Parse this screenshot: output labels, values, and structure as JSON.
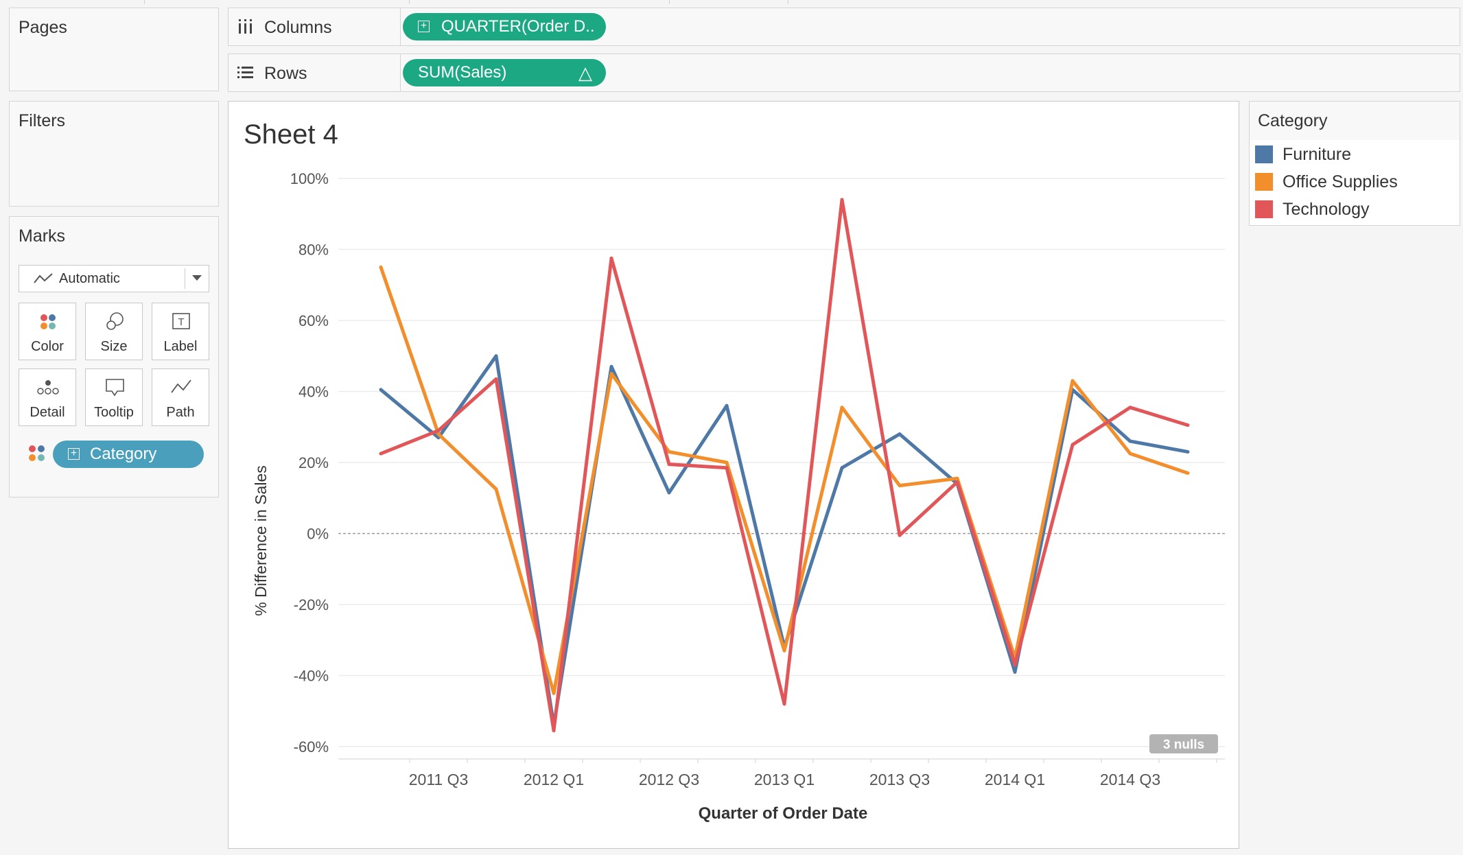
{
  "shelves": {
    "columns": {
      "label": "Columns",
      "pill": "QUARTER(Order D.."
    },
    "rows": {
      "label": "Rows",
      "pill": "SUM(Sales)",
      "pill_badge": "△"
    }
  },
  "panels": {
    "pages": "Pages",
    "filters": "Filters",
    "marks": "Marks"
  },
  "marks": {
    "type": "Automatic",
    "buttons": [
      "Color",
      "Size",
      "Label",
      "Detail",
      "Tooltip",
      "Path"
    ],
    "color_field": "Category"
  },
  "view": {
    "title": "Sheet 4",
    "nulls_badge": "3 nulls"
  },
  "legend": {
    "title": "Category",
    "items": [
      {
        "name": "Furniture",
        "color": "#4e79a7"
      },
      {
        "name": "Office Supplies",
        "color": "#f28e2b"
      },
      {
        "name": "Technology",
        "color": "#e15759"
      }
    ]
  },
  "chart_data": {
    "type": "line",
    "xlabel": "Quarter of Order Date",
    "ylabel": "% Difference in Sales",
    "ylim": [
      -60,
      100
    ],
    "y_ticks": [
      "100%",
      "80%",
      "60%",
      "40%",
      "20%",
      "0%",
      "-20%",
      "-40%",
      "-60%"
    ],
    "y_tick_values": [
      100,
      80,
      60,
      40,
      20,
      0,
      -20,
      -40,
      -60
    ],
    "x": [
      "2011 Q2",
      "2011 Q3",
      "2011 Q4",
      "2012 Q1",
      "2012 Q2",
      "2012 Q3",
      "2012 Q4",
      "2013 Q1",
      "2013 Q2",
      "2013 Q3",
      "2013 Q4",
      "2014 Q1",
      "2014 Q2",
      "2014 Q3",
      "2014 Q4"
    ],
    "x_tick_labels": [
      "2011 Q3",
      "2012 Q1",
      "2012 Q3",
      "2013 Q1",
      "2013 Q3",
      "2014 Q1",
      "2014 Q3"
    ],
    "series": [
      {
        "name": "Furniture",
        "color": "#4e79a7",
        "values": [
          40.5,
          27,
          50,
          -54,
          47,
          11.5,
          36,
          -32,
          18.5,
          28,
          14,
          -39,
          40.5,
          26,
          23
        ]
      },
      {
        "name": "Office Supplies",
        "color": "#f28e2b",
        "values": [
          75,
          28,
          12.5,
          -45,
          45,
          23,
          20,
          -33,
          35.5,
          13.5,
          15.5,
          -35,
          43,
          22.5,
          17
        ]
      },
      {
        "name": "Technology",
        "color": "#e15759",
        "values": [
          22.5,
          29,
          43.5,
          -55.5,
          77.5,
          19.5,
          18.5,
          -48,
          94,
          -0.5,
          14.5,
          -37,
          25,
          35.5,
          30.5
        ]
      }
    ],
    "legend_position": "right",
    "grid": true
  }
}
